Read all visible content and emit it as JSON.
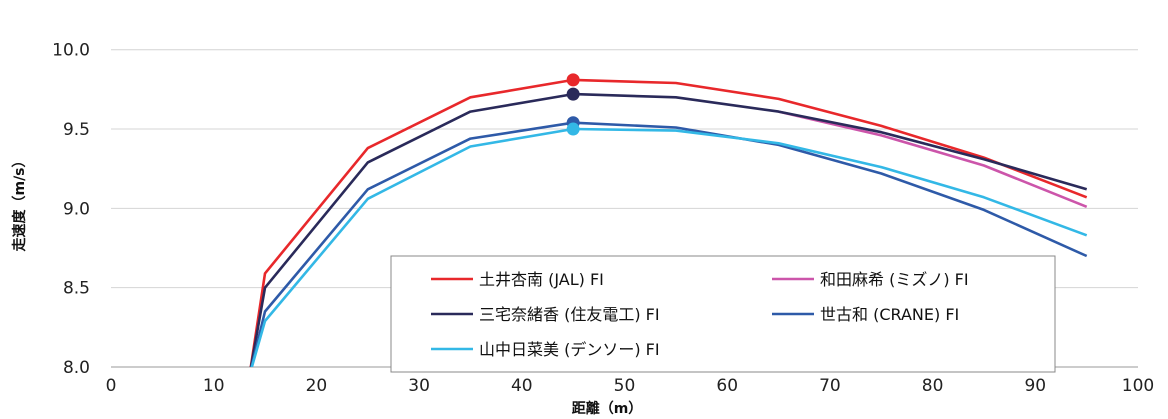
{
  "chart_data": {
    "type": "line",
    "xlabel": "距離（m）",
    "ylabel": "走速度（m/s）",
    "xlim": [
      0,
      100
    ],
    "ylim": [
      8.0,
      10.2
    ],
    "xticks": [
      "0",
      "10",
      "20",
      "30",
      "40",
      "50",
      "60",
      "70",
      "80",
      "90",
      "100"
    ],
    "yticks": [
      "8.0",
      "8.5",
      "9.0",
      "9.5",
      "10.0"
    ],
    "grid": "horizontal",
    "legend_position": "bottom-right (inside)",
    "series": [
      {
        "name": "土井杏南 (JAL) FI",
        "color": "#e8282b",
        "x": [
          13.5,
          15,
          25,
          35,
          45,
          55,
          65,
          75,
          85,
          95
        ],
        "y": [
          7.95,
          8.59,
          9.38,
          9.7,
          9.81,
          9.79,
          9.69,
          9.52,
          9.32,
          9.07
        ],
        "marker": {
          "x": 45,
          "y": 9.81
        }
      },
      {
        "name": "和田麻希 (ミズノ) FI",
        "color": "#cc55aa",
        "x": [
          65,
          75,
          85,
          95
        ],
        "y": [
          9.61,
          9.46,
          9.27,
          9.01
        ]
      },
      {
        "name": "三宅奈緒香 (住友電工) FI",
        "color": "#2a2a5a",
        "x": [
          13.5,
          15,
          25,
          35,
          45,
          55,
          65,
          75,
          85,
          95
        ],
        "y": [
          7.95,
          8.5,
          9.29,
          9.61,
          9.72,
          9.7,
          9.61,
          9.48,
          9.31,
          9.12
        ],
        "marker": {
          "x": 45,
          "y": 9.72
        }
      },
      {
        "name": "世古和 (CRANE) FI",
        "color": "#2e5aa8",
        "x": [
          13.5,
          15,
          25,
          35,
          45,
          55,
          65,
          75,
          85,
          95
        ],
        "y": [
          7.95,
          8.35,
          9.12,
          9.44,
          9.54,
          9.51,
          9.4,
          9.22,
          8.99,
          8.7
        ],
        "marker": {
          "x": 45,
          "y": 9.54
        }
      },
      {
        "name": "山中日菜美 (デンソー) FI",
        "color": "#33b8e6",
        "x": [
          13.5,
          15,
          25,
          35,
          45,
          55,
          65,
          75,
          85,
          95
        ],
        "y": [
          7.95,
          8.29,
          9.06,
          9.39,
          9.5,
          9.49,
          9.41,
          9.26,
          9.07,
          8.83
        ],
        "marker": {
          "x": 45,
          "y": 9.5
        }
      }
    ]
  }
}
